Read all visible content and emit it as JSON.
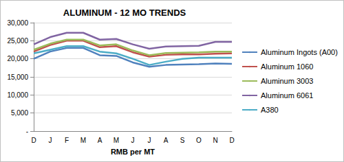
{
  "chart_data": {
    "type": "line",
    "title": "ALUMINUM - 12 MO TRENDS",
    "x_label": "RMB per MT",
    "categories": [
      "D",
      "J",
      "F",
      "M",
      "A",
      "M",
      "J",
      "J",
      "A",
      "S",
      "O",
      "N",
      "D"
    ],
    "series": [
      {
        "name": "Aluminum Ingots (A00)",
        "color": "#4f81bd",
        "values": [
          20000,
          22000,
          23000,
          23000,
          21000,
          20800,
          19000,
          17800,
          18300,
          18400,
          18500,
          18700,
          18600
        ]
      },
      {
        "name": "Aluminum 1060",
        "color": "#c0504d",
        "values": [
          22000,
          23800,
          25000,
          25000,
          23200,
          23500,
          21800,
          20600,
          21100,
          21200,
          21200,
          21400,
          21500
        ]
      },
      {
        "name": "Aluminum 3003",
        "color": "#9bbb59",
        "values": [
          22500,
          24200,
          25300,
          25300,
          23700,
          24000,
          22300,
          21000,
          21600,
          21700,
          21800,
          22000,
          22000
        ]
      },
      {
        "name": "Aluminum 6061",
        "color": "#8064a2",
        "values": [
          24000,
          26000,
          27200,
          27200,
          25300,
          25500,
          24000,
          22800,
          23400,
          23500,
          23600,
          24700,
          24700
        ]
      },
      {
        "name": "A380",
        "color": "#4bacc6",
        "values": [
          21500,
          22500,
          23500,
          23500,
          22000,
          21500,
          20000,
          18300,
          19200,
          20000,
          20300,
          20300,
          20300
        ]
      }
    ],
    "ylim": [
      0,
      30000
    ],
    "yticks": [
      {
        "value": 0,
        "label": "-"
      },
      {
        "value": 5000,
        "label": "5,000"
      },
      {
        "value": 10000,
        "label": "10,000"
      },
      {
        "value": 15000,
        "label": "15,000"
      },
      {
        "value": 20000,
        "label": "20,000"
      },
      {
        "value": 25000,
        "label": "25,000"
      },
      {
        "value": 30000,
        "label": "30,000"
      }
    ],
    "grid": true,
    "legend": "right",
    "marker": "none"
  }
}
